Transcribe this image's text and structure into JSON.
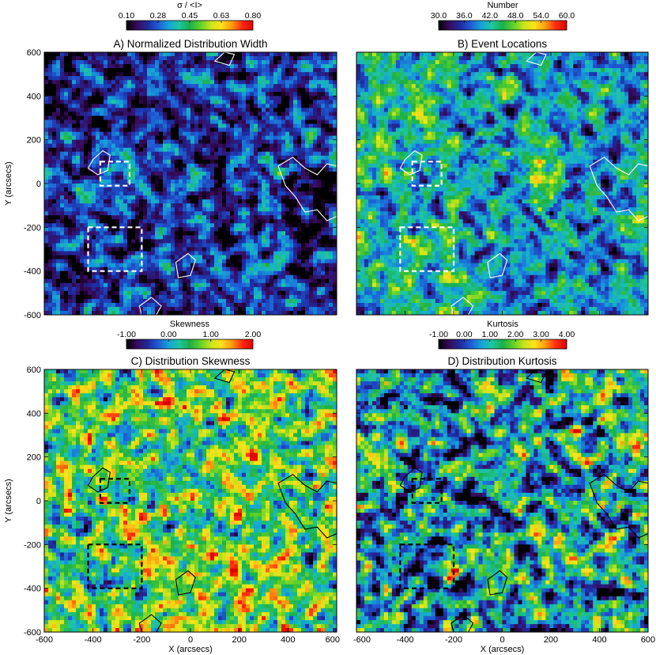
{
  "colors": {
    "colormap": [
      "#000000",
      "#3a0a5c",
      "#1e2a9c",
      "#1f5bd6",
      "#15a3d8",
      "#1ec6a2",
      "#1ab04a",
      "#5ed02a",
      "#c8e41c",
      "#ffe21a",
      "#ff9a10",
      "#ff2a10",
      "#e00000"
    ]
  },
  "chart_data": [
    {
      "type": "heatmap",
      "title": "A) Normalized Distribution Width",
      "colorbar": {
        "label": "σ / <I>",
        "ticks": [
          "0.10",
          "0.28",
          "0.45",
          "0.63",
          "0.80"
        ],
        "range": [
          0.1,
          0.8
        ]
      },
      "xlabel": "",
      "ylabel": "Y (arcsecs)",
      "xlim": [
        -600,
        600
      ],
      "ylim": [
        -600,
        600
      ],
      "xticks": [],
      "yticks": [
        "600",
        "400",
        "200",
        "0",
        "-200",
        "-400",
        "-600"
      ],
      "contour_color": "#ffffff",
      "box_color": "#ffffff",
      "field": {
        "mean": 0.3,
        "spread": 0.1,
        "dark_regions": "upper-left, right side",
        "seed": 11
      }
    },
    {
      "type": "heatmap",
      "title": "B) Event Locations",
      "colorbar": {
        "label": "Number",
        "ticks": [
          "30.0",
          "36.0",
          "42.0",
          "48.0",
          "54.0",
          "60.0"
        ],
        "range": [
          30.0,
          60.0
        ]
      },
      "xlabel": "",
      "ylabel": "",
      "xlim": [
        -600,
        600
      ],
      "ylim": [
        -600,
        600
      ],
      "xticks": [],
      "yticks": [],
      "contour_color": "#ffffff",
      "box_color": "#ffffff",
      "field": {
        "mean": 41,
        "spread": 4,
        "bright_regions": "left side, center patches",
        "seed": 23
      }
    },
    {
      "type": "heatmap",
      "title": "C) Distribution Skewness",
      "colorbar": {
        "label": "Skewness",
        "ticks": [
          "-1.00",
          "0.00",
          "1.00",
          "2.00"
        ],
        "range": [
          -1.0,
          2.0
        ]
      },
      "xlabel": "X (arcsecs)",
      "ylabel": "Y (arcsecs)",
      "xlim": [
        -600,
        600
      ],
      "ylim": [
        -600,
        600
      ],
      "xticks": [
        "-600",
        "-400",
        "-200",
        "0",
        "200",
        "400",
        "600"
      ],
      "yticks": [
        "600",
        "400",
        "200",
        "0",
        "-200",
        "-400",
        "-600"
      ],
      "contour_color": "#000000",
      "box_color": "#000000",
      "field": {
        "mean": 0.9,
        "spread": 0.45,
        "seed": 37
      }
    },
    {
      "type": "heatmap",
      "title": "D) Distribution Kurtosis",
      "colorbar": {
        "label": "Kurtosis",
        "ticks": [
          "-1.00",
          "0.00",
          "1.00",
          "2.00",
          "3.00",
          "4.00"
        ],
        "range": [
          -1.0,
          4.0
        ]
      },
      "xlabel": "X (arcsecs)",
      "ylabel": "",
      "xlim": [
        -600,
        600
      ],
      "ylim": [
        -600,
        600
      ],
      "xticks": [
        "-600",
        "-400",
        "-200",
        "0",
        "200",
        "400",
        "600"
      ],
      "yticks": [],
      "contour_color": "#000000",
      "box_color": "#000000",
      "field": {
        "mean": 0.9,
        "spread": 0.9,
        "seed": 53
      }
    }
  ],
  "dashed_boxes": [
    {
      "x0": -370,
      "x1": -250,
      "y0": -10,
      "y1": 100
    },
    {
      "x0": -420,
      "x1": -200,
      "y0": -400,
      "y1": -200
    }
  ]
}
